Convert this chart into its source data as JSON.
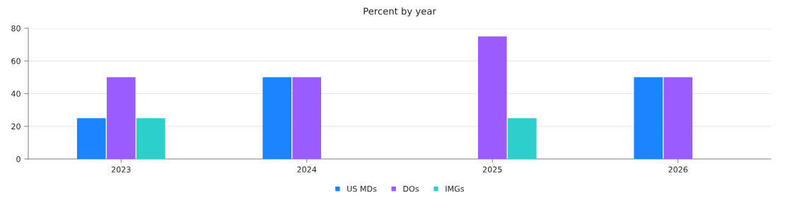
{
  "chart_data": {
    "type": "bar",
    "title": "Percent by year",
    "categories": [
      "2023",
      "2024",
      "2025",
      "2026"
    ],
    "series": [
      {
        "name": "US MDs",
        "color": "#1a84ff",
        "values": [
          25,
          50,
          0,
          50
        ]
      },
      {
        "name": "DOs",
        "color": "#9a5cff",
        "values": [
          50,
          50,
          75,
          50
        ]
      },
      {
        "name": "IMGs",
        "color": "#2ccfcc",
        "values": [
          25,
          0,
          25,
          0
        ]
      }
    ],
    "ylim": [
      0,
      80
    ],
    "yticks": [
      0,
      20,
      40,
      60,
      80
    ],
    "grid": "y",
    "legend": "bottom"
  }
}
